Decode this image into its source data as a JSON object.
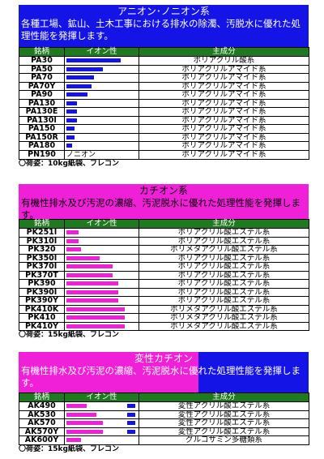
{
  "columns": {
    "code": "銘柄",
    "ion": "イオン性",
    "component": "主成分"
  },
  "sections": [
    {
      "title": "アニオン･ノニオン系",
      "description": "各種工場、鉱山、土木工事における排水の除濁、汚脱水に優れた処理性能を発揮します。",
      "package": "〇荷姿：10kg紙袋、フレコン",
      "rows": [
        {
          "code": "PA30",
          "bar": 0.82,
          "color": "blue",
          "component": "ポリアクリル酸系"
        },
        {
          "code": "PA50",
          "bar": 0.55,
          "color": "blue",
          "component": "ポリアクリルアマイド系"
        },
        {
          "code": "PA70",
          "bar": 0.42,
          "color": "blue",
          "component": "ポリアクリルアマイド系"
        },
        {
          "code": "PA70Y",
          "bar": 0.38,
          "color": "blue",
          "component": "ポリアクリルアマイド系"
        },
        {
          "code": "PA90",
          "bar": 0.32,
          "color": "blue",
          "component": "ポリアクリルアマイド系"
        },
        {
          "code": "PA130",
          "bar": 0.16,
          "color": "blue",
          "component": "ポリアクリルアマイド系"
        },
        {
          "code": "PA130E",
          "bar": 0.16,
          "color": "blue",
          "component": "ポリアクリルアマイド系"
        },
        {
          "code": "PA130I",
          "bar": 0.16,
          "color": "blue",
          "component": "ポリアクリルアマイド系"
        },
        {
          "code": "PA150",
          "bar": 0.12,
          "color": "blue",
          "component": "ポリアクリルアマイド系"
        },
        {
          "code": "PA150R",
          "bar": 0.12,
          "color": "blue",
          "component": "ポリアクリルアマイド系"
        },
        {
          "code": "PA180",
          "bar": 0.08,
          "color": "blue",
          "component": "ポリアクリルアマイド系"
        },
        {
          "code": "PN190",
          "bar": 0,
          "color": "blue",
          "ion_text": "ノニオン",
          "component": "ポリアクリルアマイド系"
        }
      ]
    },
    {
      "title": "カチオン系",
      "description": "有機性排水及び汚泥の濃縮、汚泥脱水に優れた処理性能を発揮します。",
      "package": "〇荷姿：15kg紙袋、フレコン",
      "rows": [
        {
          "code": "PK251I",
          "bar": 0.18,
          "color": "pink",
          "component": "ポリアクリル酸エステル系"
        },
        {
          "code": "PK310I",
          "bar": 0.18,
          "color": "pink",
          "component": "ポリアクリル酸エステル系"
        },
        {
          "code": "PK320",
          "bar": 0.22,
          "color": "pink",
          "component": "ポリメタアクリル酸エステル系"
        },
        {
          "code": "PK350I",
          "bar": 0.5,
          "color": "pink",
          "component": "ポリアクリル酸エステル系"
        },
        {
          "code": "PK370I",
          "bar": 0.7,
          "color": "pink",
          "component": "ポリアクリル酸エステル系"
        },
        {
          "code": "PK370T",
          "bar": 0.7,
          "color": "pink",
          "component": "ポリアクリル酸エステル系"
        },
        {
          "code": "PK390",
          "bar": 0.78,
          "color": "pink",
          "component": "ポリアクリル酸エステル系"
        },
        {
          "code": "PK390I",
          "bar": 0.78,
          "color": "pink",
          "component": "ポリアクリル酸エステル系"
        },
        {
          "code": "PK390Y",
          "bar": 0.78,
          "color": "pink",
          "component": "ポリアクリル酸エステル系"
        },
        {
          "code": "PK410K",
          "bar": 0.88,
          "color": "pink",
          "component": "ポリメタアクリル酸エステル系"
        },
        {
          "code": "PK410",
          "bar": 0.88,
          "color": "pink",
          "component": "ポリメタアクリル酸エステル系"
        },
        {
          "code": "PK410Y",
          "bar": 0.88,
          "color": "pink",
          "component": "ポリメタアクリル酸エステル系"
        }
      ]
    },
    {
      "title": "変性カチオン",
      "description": "有機性排水及び汚泥の濃縮、汚泥脱水に優れた処理性能を発揮します。",
      "package": "〇荷姿：15kg紙袋、フレコン",
      "rows": [
        {
          "code": "AK490",
          "bar": 0.3,
          "color": "pink",
          "bar2": 0.12,
          "component": "変性アクリル酸エステル系"
        },
        {
          "code": "AK530",
          "bar": 0.45,
          "color": "pink",
          "bar2": 0.12,
          "component": "変性アクリル酸エステル系"
        },
        {
          "code": "AK570",
          "bar": 0.55,
          "color": "pink",
          "bar2": 0.12,
          "component": "変性アクリル酸エステル系"
        },
        {
          "code": "AK570Y",
          "bar": 0.55,
          "color": "pink",
          "bar2": 0.12,
          "component": "変性アクリル酸エステル系"
        },
        {
          "code": "AK600Y",
          "bar": 0.22,
          "color": "pink",
          "bar2": 0,
          "component": "グルコサミン多糖類系"
        }
      ]
    }
  ]
}
